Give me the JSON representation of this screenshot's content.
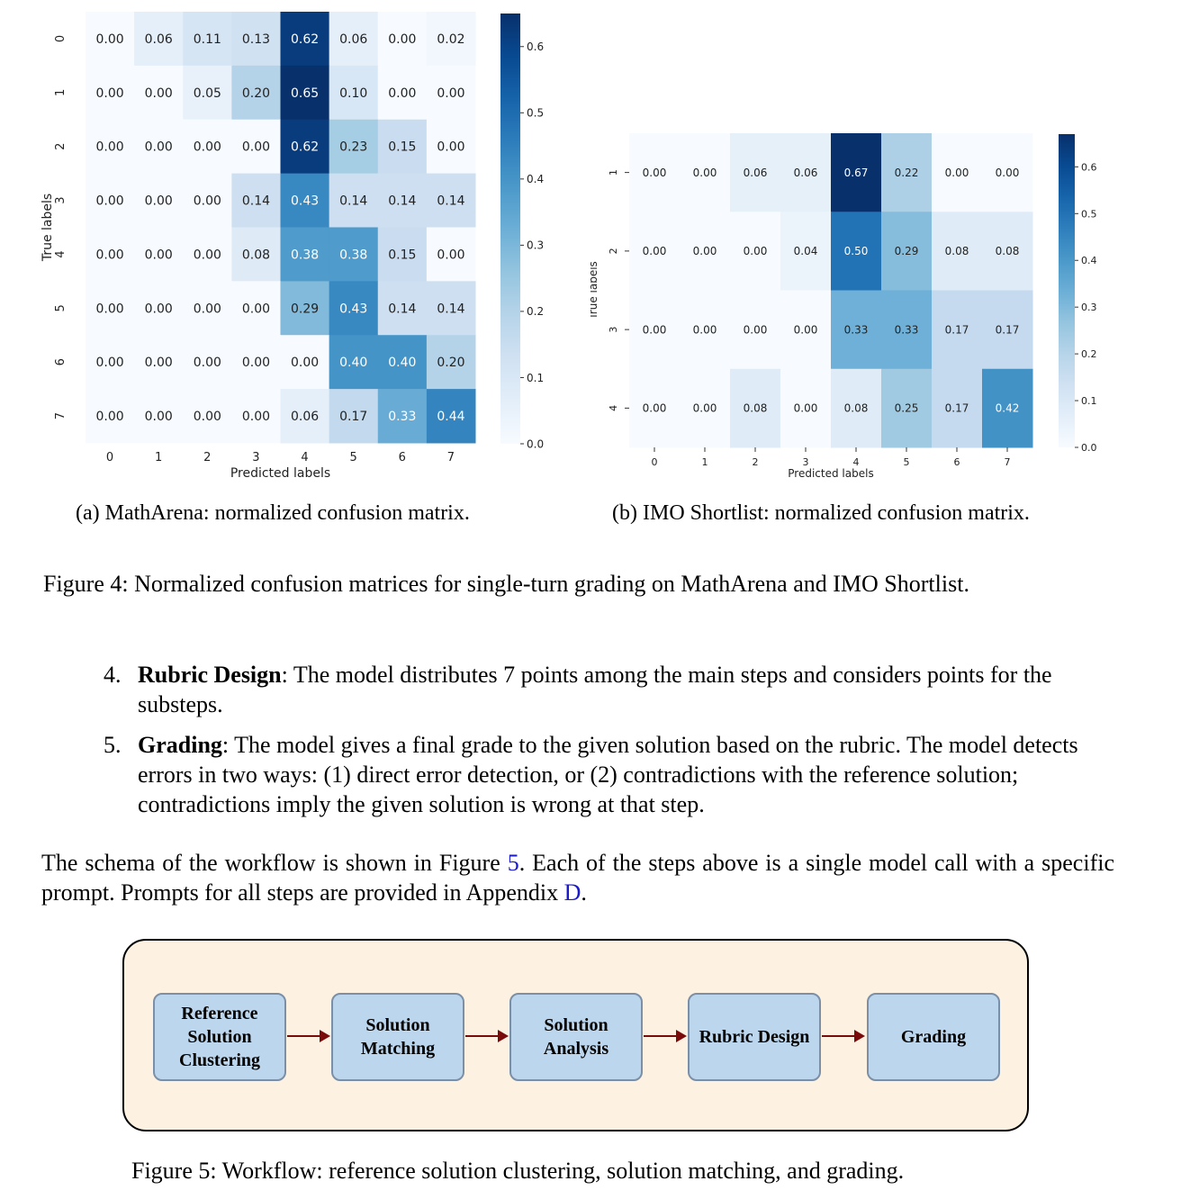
{
  "figure4": {
    "caption": "Figure 4: Normalized confusion matrices for single-turn grading on MathArena and IMO Shortlist.",
    "subfigures": {
      "a_caption": "(a) MathArena: normalized confusion matrix.",
      "b_caption": "(b) IMO Shortlist: normalized confusion matrix."
    }
  },
  "chart_data": [
    {
      "type": "heatmap",
      "xlabel": "Predicted labels",
      "ylabel": "True labels",
      "x_ticks": [
        "0",
        "1",
        "2",
        "3",
        "4",
        "5",
        "6",
        "7"
      ],
      "y_ticks": [
        "0",
        "1",
        "2",
        "3",
        "4",
        "5",
        "6",
        "7"
      ],
      "values": [
        [
          0.0,
          0.06,
          0.11,
          0.13,
          0.62,
          0.06,
          0.0,
          0.02
        ],
        [
          0.0,
          0.0,
          0.05,
          0.2,
          0.65,
          0.1,
          0.0,
          0.0
        ],
        [
          0.0,
          0.0,
          0.0,
          0.0,
          0.62,
          0.23,
          0.15,
          0.0
        ],
        [
          0.0,
          0.0,
          0.0,
          0.14,
          0.43,
          0.14,
          0.14,
          0.14
        ],
        [
          0.0,
          0.0,
          0.0,
          0.08,
          0.38,
          0.38,
          0.15,
          0.0
        ],
        [
          0.0,
          0.0,
          0.0,
          0.0,
          0.29,
          0.43,
          0.14,
          0.14
        ],
        [
          0.0,
          0.0,
          0.0,
          0.0,
          0.0,
          0.4,
          0.4,
          0.2
        ],
        [
          0.0,
          0.0,
          0.0,
          0.0,
          0.06,
          0.17,
          0.33,
          0.44
        ]
      ],
      "colorbar": {
        "ticks": [
          "0.0",
          "0.1",
          "0.2",
          "0.3",
          "0.4",
          "0.5",
          "0.6"
        ],
        "range": [
          0,
          0.65
        ]
      },
      "colormap": "Blues"
    },
    {
      "type": "heatmap",
      "xlabel": "Predicted labels",
      "ylabel": "True labels",
      "x_ticks": [
        "0",
        "1",
        "2",
        "3",
        "4",
        "5",
        "6",
        "7"
      ],
      "y_ticks": [
        "1",
        "2",
        "3",
        "4"
      ],
      "values": [
        [
          0.0,
          0.0,
          0.06,
          0.06,
          0.67,
          0.22,
          0.0,
          0.0
        ],
        [
          0.0,
          0.0,
          0.0,
          0.04,
          0.5,
          0.29,
          0.08,
          0.08
        ],
        [
          0.0,
          0.0,
          0.0,
          0.0,
          0.33,
          0.33,
          0.17,
          0.17
        ],
        [
          0.0,
          0.0,
          0.08,
          0.0,
          0.08,
          0.25,
          0.17,
          0.42
        ]
      ],
      "colorbar": {
        "ticks": [
          "0.0",
          "0.1",
          "0.2",
          "0.3",
          "0.4",
          "0.5",
          "0.6"
        ],
        "range": [
          0,
          0.67
        ]
      },
      "colormap": "Blues"
    }
  ],
  "list": [
    {
      "num": "4.",
      "term": "Rubric Design",
      "text": ": The model distributes 7 points among the main steps and considers points for the substeps."
    },
    {
      "num": "5.",
      "term": "Grading",
      "text": ": The model gives a final grade to the given solution based on the rubric. The model detects errors in two ways: (1) direct error detection, or (2) contradictions with the reference solution; contradictions imply the given solution is wrong at that step."
    }
  ],
  "paragraph": {
    "part1": "The schema of the workflow is shown in Figure ",
    "ref1": "5",
    "part2": ". Each of the steps above is a single model call with a specific prompt. Prompts for all steps are provided in Appendix ",
    "ref2": "D",
    "part3": "."
  },
  "workflow": {
    "boxes": [
      "Reference Solution Clustering",
      "Solution Matching",
      "Solution Analysis",
      "Rubric Design",
      "Grading"
    ],
    "caption": "Figure 5: Workflow: reference solution clustering, solution matching, and grading."
  }
}
